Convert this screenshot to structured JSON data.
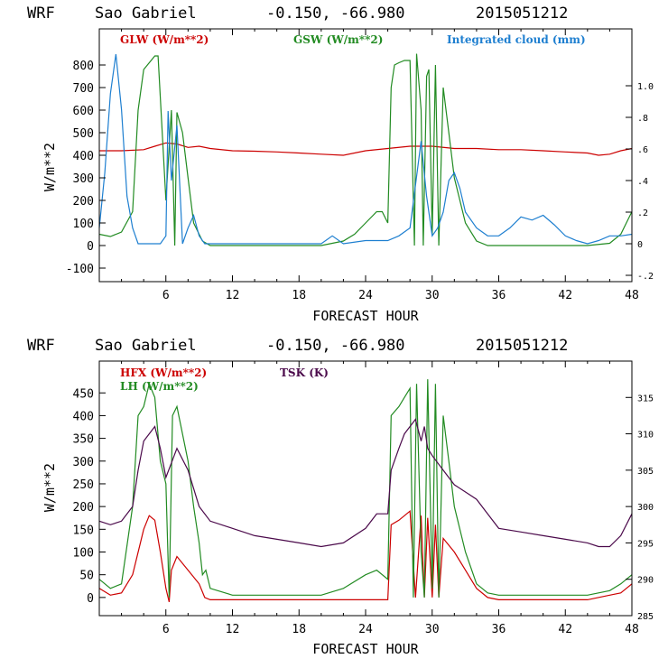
{
  "chart_data": [
    {
      "type": "line",
      "model": "WRF",
      "location": "Sao Gabriel",
      "coords": "-0.150, -66.980",
      "init": "2015051212",
      "xlabel": "FORECAST HOUR",
      "ylabel": "W/m**2",
      "xlim": [
        0,
        48
      ],
      "xticks": [
        "6",
        "12",
        "18",
        "24",
        "30",
        "36",
        "42",
        "48"
      ],
      "xtick_values": [
        6,
        12,
        18,
        24,
        30,
        36,
        42,
        48
      ],
      "ylim": [
        -160,
        960
      ],
      "yticks": [
        "-100",
        "0",
        "100",
        "200",
        "300",
        "400",
        "500",
        "600",
        "700",
        "800"
      ],
      "ytick_values": [
        -100,
        0,
        100,
        200,
        300,
        400,
        500,
        600,
        700,
        800
      ],
      "y2lim": [
        -0.24,
        1.36
      ],
      "y2ticks": [
        "-.2",
        "0",
        ".2",
        ".4",
        ".6",
        ".8",
        "1.0"
      ],
      "y2tick_values": [
        -0.2,
        0,
        0.2,
        0.4,
        0.6,
        0.8,
        1.0
      ],
      "series": [
        {
          "name": "GLW (W/m**2)",
          "color": "#cc0000",
          "axis": "left",
          "x": [
            0,
            2,
            4,
            5,
            6,
            7,
            8,
            9,
            10,
            12,
            14,
            16,
            18,
            20,
            22,
            24,
            26,
            28,
            30,
            32,
            34,
            36,
            38,
            40,
            42,
            44,
            45,
            46,
            47,
            48
          ],
          "values": [
            420,
            420,
            425,
            440,
            455,
            450,
            435,
            440,
            430,
            420,
            418,
            415,
            410,
            405,
            400,
            420,
            430,
            440,
            440,
            430,
            430,
            425,
            425,
            420,
            415,
            410,
            400,
            405,
            420,
            430
          ]
        },
        {
          "name": "GSW (W/m**2)",
          "color": "#228b22",
          "axis": "left",
          "x": [
            0,
            1,
            2,
            3,
            3.5,
            4,
            5,
            5.3,
            6,
            6.5,
            6.8,
            7,
            7.5,
            8,
            8.5,
            9,
            9.3,
            10,
            11,
            20,
            22,
            23,
            24,
            25,
            25.5,
            26,
            26.3,
            26.6,
            27,
            27.5,
            28,
            28.4,
            28.6,
            29,
            29.2,
            29.5,
            29.7,
            30,
            30.3,
            30.6,
            31,
            31.5,
            32,
            33,
            34,
            35,
            36,
            40,
            44,
            46,
            47,
            48
          ],
          "values": [
            50,
            40,
            60,
            150,
            600,
            780,
            840,
            840,
            200,
            600,
            0,
            590,
            500,
            300,
            100,
            50,
            20,
            0,
            0,
            0,
            20,
            50,
            100,
            150,
            150,
            100,
            700,
            800,
            810,
            820,
            820,
            0,
            850,
            600,
            0,
            750,
            780,
            50,
            800,
            0,
            700,
            500,
            300,
            100,
            20,
            0,
            0,
            0,
            0,
            10,
            50,
            150
          ]
        },
        {
          "name": "Integrated cloud (mm)",
          "color": "#1e7fd0",
          "axis": "right",
          "x": [
            0,
            0.5,
            1,
            1.5,
            2,
            2.5,
            3,
            3.5,
            4,
            5,
            5.5,
            6,
            6.2,
            6.5,
            7,
            7.5,
            8,
            8.5,
            9,
            9.5,
            10,
            12,
            20,
            21,
            22,
            24,
            26,
            27,
            28,
            29,
            29.5,
            30,
            30.5,
            31,
            31.5,
            32,
            32.5,
            33,
            34,
            35,
            36,
            37,
            38,
            39,
            40,
            41,
            42,
            43,
            44,
            45,
            46,
            47,
            48
          ],
          "values": [
            0.1,
            0.45,
            0.95,
            1.2,
            0.85,
            0.3,
            0.1,
            0.0,
            0.0,
            0.0,
            0.0,
            0.05,
            0.84,
            0.4,
            0.75,
            0.0,
            0.1,
            0.18,
            0.05,
            0.0,
            0.0,
            0.0,
            0.0,
            0.05,
            0.0,
            0.02,
            0.02,
            0.05,
            0.1,
            0.65,
            0.3,
            0.05,
            0.1,
            0.2,
            0.4,
            0.45,
            0.35,
            0.2,
            0.1,
            0.05,
            0.05,
            0.1,
            0.17,
            0.15,
            0.18,
            0.12,
            0.05,
            0.02,
            0.0,
            0.02,
            0.05,
            0.05,
            0.06
          ]
        }
      ]
    },
    {
      "type": "line",
      "model": "WRF",
      "location": "Sao Gabriel",
      "coords": "-0.150, -66.980",
      "init": "2015051212",
      "xlabel": "FORECAST HOUR",
      "ylabel": "W/m**2",
      "xlim": [
        0,
        48
      ],
      "xticks": [
        "6",
        "12",
        "18",
        "24",
        "30",
        "36",
        "42",
        "48"
      ],
      "xtick_values": [
        6,
        12,
        18,
        24,
        30,
        36,
        42,
        48
      ],
      "ylim": [
        -40,
        520
      ],
      "yticks": [
        "0",
        "50",
        "100",
        "150",
        "200",
        "250",
        "300",
        "350",
        "400",
        "450"
      ],
      "ytick_values": [
        0,
        50,
        100,
        150,
        200,
        250,
        300,
        350,
        400,
        450
      ],
      "y2lim": [
        285,
        320
      ],
      "y2ticks": [
        "285",
        "290",
        "295",
        "300",
        "305",
        "310",
        "315"
      ],
      "y2tick_values": [
        285,
        290,
        295,
        300,
        305,
        310,
        315
      ],
      "series": [
        {
          "name": "HFX (W/m**2)",
          "color": "#cc0000",
          "axis": "left",
          "x": [
            0,
            1,
            2,
            3,
            4,
            4.5,
            5,
            5.5,
            6,
            6.3,
            6.5,
            7,
            8,
            9,
            9.5,
            10,
            12,
            20,
            24,
            26,
            26.3,
            27,
            28,
            28.5,
            29,
            29.3,
            29.6,
            30,
            30.3,
            30.6,
            31,
            32,
            33,
            34,
            35,
            36,
            44,
            46,
            47,
            48
          ],
          "values": [
            20,
            5,
            10,
            50,
            150,
            180,
            170,
            100,
            20,
            -10,
            60,
            90,
            60,
            30,
            0,
            -5,
            -5,
            -5,
            -5,
            -5,
            160,
            170,
            190,
            0,
            180,
            0,
            175,
            0,
            160,
            0,
            130,
            100,
            60,
            20,
            0,
            -5,
            -5,
            5,
            10,
            30
          ]
        },
        {
          "name": "LH (W/m**2)",
          "color": "#228b22",
          "axis": "left",
          "x": [
            0,
            1,
            2,
            3,
            3.5,
            4,
            4.5,
            5,
            5.5,
            6,
            6.3,
            6.6,
            7,
            8,
            8.5,
            9,
            9.3,
            9.6,
            10,
            12,
            20,
            22,
            24,
            25,
            26,
            26.3,
            27,
            27.5,
            28,
            28.3,
            28.6,
            29,
            29.3,
            29.6,
            30,
            30.3,
            30.6,
            31,
            31.5,
            32,
            33,
            34,
            35,
            36,
            44,
            46,
            47,
            48
          ],
          "values": [
            40,
            20,
            30,
            200,
            400,
            420,
            470,
            440,
            300,
            250,
            0,
            400,
            420,
            300,
            200,
            120,
            50,
            60,
            20,
            5,
            5,
            20,
            50,
            60,
            40,
            400,
            420,
            440,
            460,
            0,
            470,
            100,
            0,
            480,
            20,
            470,
            0,
            400,
            300,
            200,
            100,
            30,
            10,
            5,
            5,
            15,
            30,
            50
          ]
        },
        {
          "name": "TSK (K)",
          "color": "#4b0a4b",
          "axis": "right",
          "x": [
            0,
            1,
            2,
            3,
            3.5,
            4,
            5,
            5.5,
            6,
            6.5,
            7,
            8,
            9,
            9.5,
            10,
            12,
            14,
            16,
            18,
            20,
            22,
            24,
            25,
            26,
            26.3,
            27,
            27.5,
            28,
            28.5,
            29,
            29.3,
            29.6,
            30,
            30.5,
            31,
            32,
            33,
            34,
            35,
            36,
            38,
            40,
            42,
            44,
            45,
            46,
            47,
            48
          ],
          "values": [
            298,
            297.5,
            298,
            300,
            305,
            309,
            311,
            308,
            304,
            306,
            308,
            305,
            300,
            299,
            298,
            297,
            296,
            295.5,
            295,
            294.5,
            295,
            297,
            299,
            299,
            305,
            308,
            310,
            311,
            312,
            309,
            311,
            308,
            307,
            306,
            305,
            303,
            302,
            301,
            299,
            297,
            296.5,
            296,
            295.5,
            295,
            294.5,
            294.5,
            296,
            299
          ]
        }
      ]
    }
  ]
}
